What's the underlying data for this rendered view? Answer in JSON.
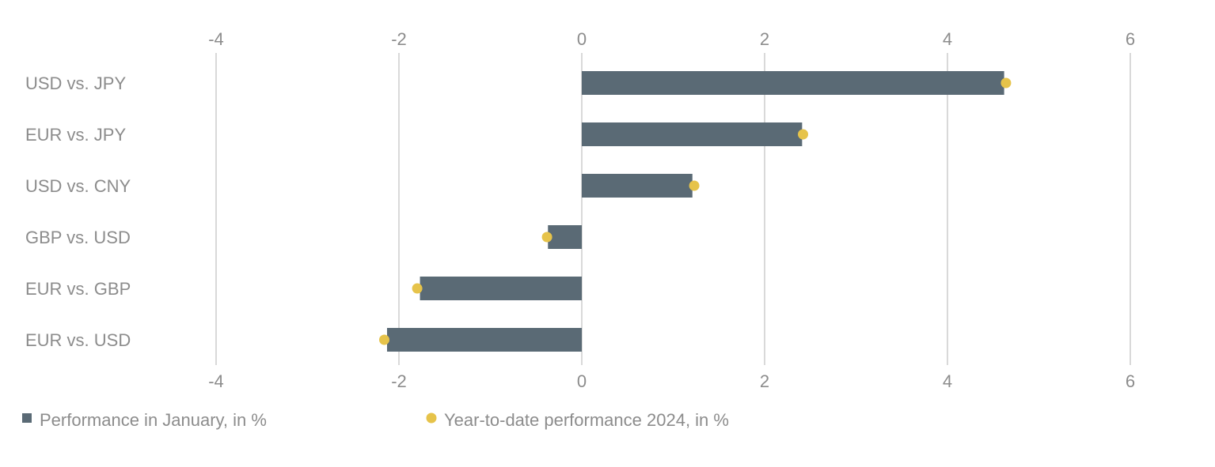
{
  "chart_data": {
    "type": "bar",
    "orientation": "horizontal",
    "categories": [
      "USD vs. JPY",
      "EUR vs. JPY",
      "USD vs. CNY",
      "GBP vs. USD",
      "EUR vs. GBP",
      "EUR vs. USD"
    ],
    "series": [
      {
        "name": "Performance in January, in %",
        "type": "bar",
        "color": "#5a6a75",
        "values": [
          4.62,
          2.41,
          1.21,
          -0.37,
          -1.77,
          -2.13
        ]
      },
      {
        "name": "Year-to-date performance 2024, in %",
        "type": "dot",
        "color": "#e6c34a",
        "values": [
          4.64,
          2.42,
          1.23,
          -0.38,
          -1.8,
          -2.16
        ]
      }
    ],
    "xlim": [
      -4,
      6
    ],
    "xticks": [
      "-4",
      "-2",
      "0",
      "2",
      "4",
      "6"
    ],
    "xtick_values": [
      -4,
      -2,
      0,
      2,
      4,
      6
    ],
    "grid": true,
    "legend": "bottom-left",
    "title": "",
    "xlabel": "",
    "ylabel": ""
  }
}
